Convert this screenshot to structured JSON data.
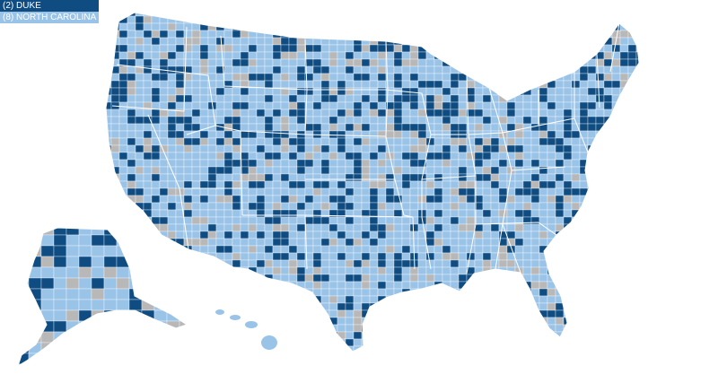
{
  "legend": {
    "items": [
      {
        "label": "(2) DUKE",
        "color": "#0f4c81"
      },
      {
        "label": "(8) NORTH CAROLINA",
        "color": "#9ac3e8"
      }
    ]
  },
  "colors": {
    "duke": "#0f4c81",
    "north_carolina": "#9ac3e8",
    "no_data": "#b8b8b8",
    "boundary": "#ffffff",
    "background": "#ffffff"
  }
}
